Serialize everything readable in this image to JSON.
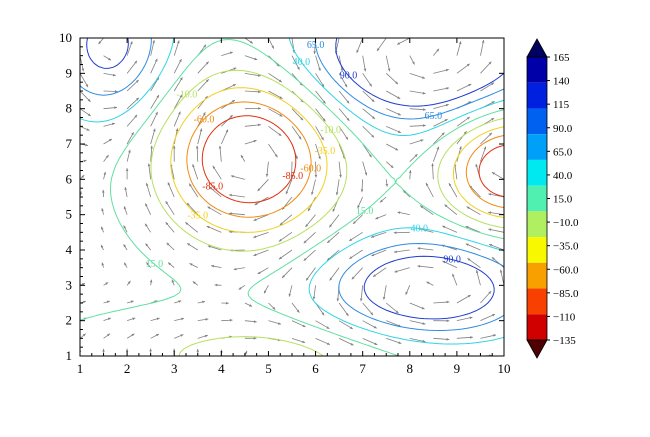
{
  "chart_data": {
    "type": "contour",
    "title": "",
    "xlabel": "",
    "ylabel": "",
    "xlim": [
      1,
      10
    ],
    "ylim": [
      1,
      10
    ],
    "x_ticks": [
      1,
      2,
      3,
      4,
      5,
      6,
      7,
      8,
      9,
      10
    ],
    "y_ticks": [
      1,
      2,
      3,
      4,
      5,
      6,
      7,
      8,
      9,
      10
    ],
    "grid": false,
    "vector_field": {
      "color": "#808080",
      "spacing": 0.5
    },
    "contour_levels": [
      {
        "value": 90.0,
        "label": "90.0",
        "color": "#1e3ccf"
      },
      {
        "value": 65.0,
        "label": "65.0",
        "color": "#2f8be0"
      },
      {
        "value": 40.0,
        "label": "40.0",
        "color": "#30d4e6"
      },
      {
        "value": 15.0,
        "label": "15.0",
        "color": "#5fe0a0"
      },
      {
        "value": -10.0,
        "label": "-10.0",
        "color": "#b6e060"
      },
      {
        "value": -35.0,
        "label": "-35.0",
        "color": "#f0d020"
      },
      {
        "value": -60.0,
        "label": "-60.0",
        "color": "#f08a10"
      },
      {
        "value": -85.0,
        "label": "-85.0",
        "color": "#e03010"
      }
    ],
    "colorbar": {
      "labels": [
        "165",
        "140",
        "115",
        "90.0",
        "65.0",
        "40.0",
        "15.0",
        "−10.0",
        "−35.0",
        "−60.0",
        "−85.0",
        "−110",
        "−135"
      ],
      "colors": [
        "#000060",
        "#0000a8",
        "#0020e0",
        "#0060f0",
        "#00a0f8",
        "#00e8f0",
        "#50f0b0",
        "#b0f060",
        "#f8f800",
        "#f8a000",
        "#f84000",
        "#d00000",
        "#500000"
      ],
      "extend": "both"
    }
  }
}
